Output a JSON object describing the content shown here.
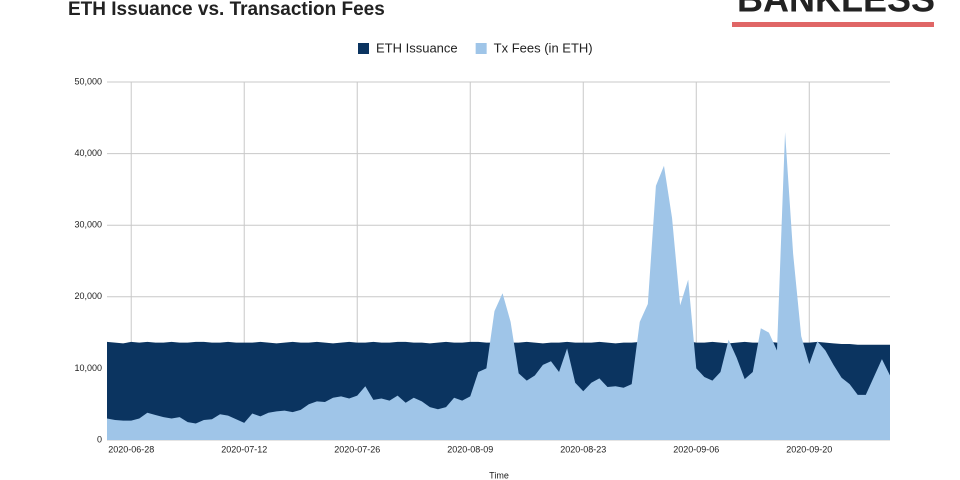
{
  "header": {
    "logo": "BANKLESS"
  },
  "chart_data": {
    "type": "area",
    "title": "ETH Issuance vs. Transaction Fees",
    "x_label": "Time",
    "x": [
      "2020-06-25",
      "2020-06-26",
      "2020-06-27",
      "2020-06-28",
      "2020-06-29",
      "2020-06-30",
      "2020-07-01",
      "2020-07-02",
      "2020-07-03",
      "2020-07-04",
      "2020-07-05",
      "2020-07-06",
      "2020-07-07",
      "2020-07-08",
      "2020-07-09",
      "2020-07-10",
      "2020-07-11",
      "2020-07-12",
      "2020-07-13",
      "2020-07-14",
      "2020-07-15",
      "2020-07-16",
      "2020-07-17",
      "2020-07-18",
      "2020-07-19",
      "2020-07-20",
      "2020-07-21",
      "2020-07-22",
      "2020-07-23",
      "2020-07-24",
      "2020-07-25",
      "2020-07-26",
      "2020-07-27",
      "2020-07-28",
      "2020-07-29",
      "2020-07-30",
      "2020-07-31",
      "2020-08-01",
      "2020-08-02",
      "2020-08-03",
      "2020-08-04",
      "2020-08-05",
      "2020-08-06",
      "2020-08-07",
      "2020-08-08",
      "2020-08-09",
      "2020-08-10",
      "2020-08-11",
      "2020-08-12",
      "2020-08-13",
      "2020-08-14",
      "2020-08-15",
      "2020-08-16",
      "2020-08-17",
      "2020-08-18",
      "2020-08-19",
      "2020-08-20",
      "2020-08-21",
      "2020-08-22",
      "2020-08-23",
      "2020-08-24",
      "2020-08-25",
      "2020-08-26",
      "2020-08-27",
      "2020-08-28",
      "2020-08-29",
      "2020-08-30",
      "2020-08-31",
      "2020-09-01",
      "2020-09-02",
      "2020-09-03",
      "2020-09-04",
      "2020-09-05",
      "2020-09-06",
      "2020-09-07",
      "2020-09-08",
      "2020-09-09",
      "2020-09-10",
      "2020-09-11",
      "2020-09-12",
      "2020-09-13",
      "2020-09-14",
      "2020-09-15",
      "2020-09-16",
      "2020-09-17",
      "2020-09-18",
      "2020-09-19",
      "2020-09-20",
      "2020-09-21",
      "2020-09-22",
      "2020-09-23",
      "2020-09-24",
      "2020-09-25",
      "2020-09-26",
      "2020-09-27",
      "2020-09-28",
      "2020-09-29",
      "2020-09-30"
    ],
    "series": [
      {
        "name": "ETH Issuance",
        "color": "#0b3460",
        "values": [
          13700,
          13600,
          13500,
          13700,
          13600,
          13700,
          13600,
          13600,
          13700,
          13600,
          13600,
          13700,
          13700,
          13600,
          13600,
          13700,
          13600,
          13600,
          13600,
          13700,
          13600,
          13500,
          13600,
          13700,
          13600,
          13600,
          13700,
          13600,
          13500,
          13600,
          13700,
          13600,
          13600,
          13700,
          13600,
          13600,
          13700,
          13700,
          13600,
          13600,
          13500,
          13600,
          13700,
          13600,
          13600,
          13700,
          13700,
          13600,
          13600,
          13500,
          13600,
          13600,
          13700,
          13600,
          13500,
          13600,
          13600,
          13700,
          13600,
          13600,
          13600,
          13700,
          13600,
          13500,
          13600,
          13600,
          13700,
          13800,
          13700,
          13600,
          13500,
          13600,
          13800,
          13600,
          13600,
          13700,
          13600,
          13500,
          13600,
          13700,
          13600,
          13600,
          13700,
          13600,
          13500,
          13700,
          13600,
          13600,
          13700,
          13600,
          13500,
          13400,
          13400,
          13300,
          13300,
          13300,
          13300,
          13300
        ]
      },
      {
        "name": "Tx Fees (in ETH)",
        "color": "#9fc5e8",
        "values": [
          3000,
          2800,
          2700,
          2700,
          3000,
          3800,
          3500,
          3200,
          3000,
          3200,
          2500,
          2300,
          2800,
          2900,
          3600,
          3400,
          2900,
          2400,
          3700,
          3300,
          3800,
          4000,
          4100,
          3900,
          4200,
          5000,
          5400,
          5300,
          5900,
          6100,
          5800,
          6200,
          7500,
          5600,
          5800,
          5500,
          6200,
          5200,
          5900,
          5400,
          4600,
          4300,
          4600,
          5900,
          5500,
          6100,
          9500,
          10000,
          18000,
          20500,
          16500,
          9300,
          8300,
          9000,
          10500,
          11000,
          9500,
          12800,
          8000,
          6800,
          8000,
          8600,
          7400,
          7500,
          7300,
          7800,
          16500,
          19000,
          35500,
          38300,
          31000,
          18800,
          22400,
          10000,
          8800,
          8300,
          9500,
          14000,
          11500,
          8500,
          9500,
          15600,
          15000,
          12500,
          43000,
          26000,
          14500,
          10600,
          13800,
          12500,
          10500,
          8700,
          7800,
          6300,
          6300,
          8800,
          11300,
          9000
        ]
      }
    ],
    "xticks": [
      "2020-06-28",
      "2020-07-12",
      "2020-07-26",
      "2020-08-09",
      "2020-08-23",
      "2020-09-06",
      "2020-09-20"
    ],
    "ylim": [
      0,
      50000
    ],
    "yticks": [
      0,
      {
        "value": 10000,
        "label": "10,000"
      },
      {
        "value": 20000,
        "label": "20,000"
      },
      {
        "value": 30000,
        "label": "30,000"
      },
      {
        "value": 40000,
        "label": "40,000"
      },
      {
        "value": 50000,
        "label": "50,000"
      }
    ],
    "grid": true,
    "legend": "top"
  }
}
